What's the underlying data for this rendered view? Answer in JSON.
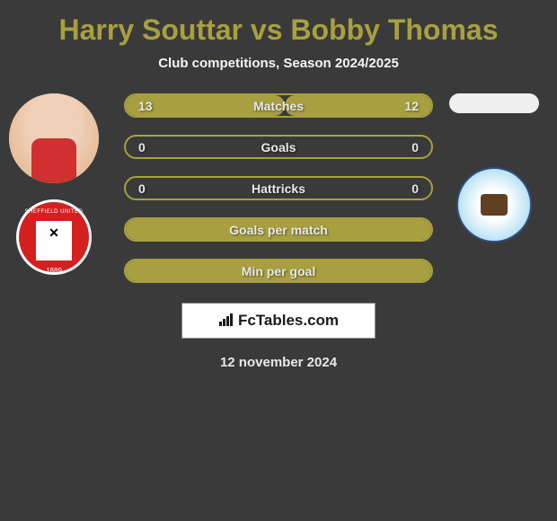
{
  "header": {
    "title": "Harry Souttar vs Bobby Thomas",
    "subtitle": "Club competitions, Season 2024/2025"
  },
  "player_left": {
    "name": "Harry Souttar",
    "club": "Sheffield United",
    "club_year": "1889"
  },
  "player_right": {
    "name": "Bobby Thomas",
    "club": "Coventry City"
  },
  "stats": [
    {
      "label": "Matches",
      "left_value": "13",
      "right_value": "12",
      "left_fill_pct": 52,
      "right_fill_pct": 48,
      "full_fill": false
    },
    {
      "label": "Goals",
      "left_value": "0",
      "right_value": "0",
      "left_fill_pct": 0,
      "right_fill_pct": 0,
      "full_fill": false
    },
    {
      "label": "Hattricks",
      "left_value": "0",
      "right_value": "0",
      "left_fill_pct": 0,
      "right_fill_pct": 0,
      "full_fill": false
    },
    {
      "label": "Goals per match",
      "left_value": "",
      "right_value": "",
      "left_fill_pct": 0,
      "right_fill_pct": 0,
      "full_fill": true
    },
    {
      "label": "Min per goal",
      "left_value": "",
      "right_value": "",
      "left_fill_pct": 0,
      "right_fill_pct": 0,
      "full_fill": true
    }
  ],
  "watermark": {
    "text": "FcTables.com"
  },
  "footer": {
    "date": "12 november 2024"
  },
  "colors": {
    "background": "#3a3a3a",
    "accent": "#a8a040",
    "text": "#e8e8e8",
    "club_left": "#d42020",
    "club_right": "#87ceeb"
  }
}
